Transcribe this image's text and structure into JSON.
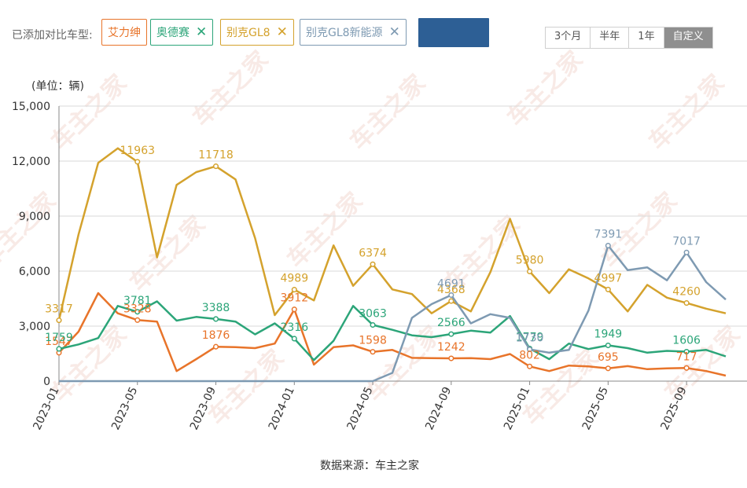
{
  "header": {
    "prefix": "已添加对比车型:",
    "chips": [
      {
        "label": "艾力绅",
        "color": "#e8742a",
        "removable": false
      },
      {
        "label": "奥德赛",
        "color": "#2ca579",
        "removable": true
      },
      {
        "label": "别克GL8",
        "color": "#d4a22d",
        "removable": true
      },
      {
        "label": "别克GL8新能源",
        "color": "#7e9ab2",
        "removable": true
      }
    ],
    "remove_glyph": "✕",
    "ranges": [
      {
        "label": "3个月",
        "active": false
      },
      {
        "label": "半年",
        "active": false
      },
      {
        "label": "1年",
        "active": false
      },
      {
        "label": "自定义",
        "active": true
      }
    ]
  },
  "source_note": "数据来源：车主之家",
  "watermark_text": "车主之家",
  "chart_data": {
    "type": "line",
    "unit_label": "(单位：辆)",
    "x": [
      "2023-01",
      "2023-02",
      "2023-03",
      "2023-04",
      "2023-05",
      "2023-06",
      "2023-07",
      "2023-08",
      "2023-09",
      "2023-10",
      "2023-11",
      "2023-12",
      "2024-01",
      "2024-02",
      "2024-03",
      "2024-04",
      "2024-05",
      "2024-06",
      "2024-07",
      "2024-08",
      "2024-09",
      "2024-10",
      "2024-11",
      "2024-12",
      "2025-01",
      "2025-02",
      "2025-03",
      "2025-04",
      "2025-05",
      "2025-06",
      "2025-07",
      "2025-08",
      "2025-09",
      "2025-10",
      "2025-11"
    ],
    "x_ticks": [
      "2023-01",
      "2023-05",
      "2023-09",
      "2024-01",
      "2024-05",
      "2024-09",
      "2025-01",
      "2025-05",
      "2025-09"
    ],
    "ylim": [
      0,
      15000
    ],
    "y_ticks": [
      0,
      3000,
      6000,
      9000,
      12000,
      15000
    ],
    "y_tick_labels": [
      "0",
      "3,000",
      "6,000",
      "9,000",
      "12,000",
      "15,000"
    ],
    "series": [
      {
        "name": "艾力绅",
        "color": "#e8742a",
        "values": [
          1547,
          2700,
          4800,
          3700,
          3328,
          3250,
          550,
          1200,
          1876,
          1850,
          1800,
          2050,
          3912,
          900,
          1850,
          1950,
          1598,
          1700,
          1270,
          1250,
          1242,
          1250,
          1200,
          1480,
          802,
          550,
          850,
          800,
          695,
          820,
          650,
          700,
          717,
          550,
          300
        ],
        "labeled": [
          {
            "index": 0,
            "text": "1547"
          },
          {
            "index": 4,
            "text": "3328"
          },
          {
            "index": 8,
            "text": "1876"
          },
          {
            "index": 12,
            "text": "3912"
          },
          {
            "index": 16,
            "text": "1598"
          },
          {
            "index": 20,
            "text": "1242"
          },
          {
            "index": 24,
            "text": "802"
          },
          {
            "index": 28,
            "text": "695"
          },
          {
            "index": 32,
            "text": "717"
          }
        ]
      },
      {
        "name": "奥德赛",
        "color": "#2ca579",
        "values": [
          1759,
          2000,
          2350,
          4100,
          3781,
          4350,
          3300,
          3500,
          3388,
          3250,
          2550,
          3150,
          2316,
          1150,
          2200,
          4100,
          3063,
          2800,
          2500,
          2400,
          2566,
          2750,
          2650,
          3550,
          1779,
          1200,
          2050,
          1750,
          1949,
          1800,
          1550,
          1650,
          1606,
          1700,
          1350
        ],
        "labeled": [
          {
            "index": 0,
            "text": "1759"
          },
          {
            "index": 4,
            "text": "3781"
          },
          {
            "index": 8,
            "text": "3388"
          },
          {
            "index": 12,
            "text": "2316"
          },
          {
            "index": 16,
            "text": "3063"
          },
          {
            "index": 20,
            "text": "2566"
          },
          {
            "index": 24,
            "text": "1779"
          },
          {
            "index": 28,
            "text": "1949"
          },
          {
            "index": 32,
            "text": "1606"
          }
        ]
      },
      {
        "name": "别克GL8",
        "color": "#d4a22d",
        "values": [
          3317,
          8000,
          11900,
          12700,
          11963,
          6750,
          10700,
          11400,
          11718,
          11000,
          7800,
          3600,
          4989,
          4400,
          7400,
          5200,
          6374,
          5000,
          4750,
          3700,
          4368,
          3800,
          5950,
          8850,
          5980,
          4800,
          6100,
          5600,
          4997,
          3800,
          5250,
          4550,
          4260,
          3950,
          3700
        ],
        "labeled": [
          {
            "index": 0,
            "text": "3317"
          },
          {
            "index": 4,
            "text": "11963"
          },
          {
            "index": 8,
            "text": "11718"
          },
          {
            "index": 12,
            "text": "4989"
          },
          {
            "index": 16,
            "text": "6374"
          },
          {
            "index": 20,
            "text": "4368"
          },
          {
            "index": 24,
            "text": "5980"
          },
          {
            "index": 28,
            "text": "4997"
          },
          {
            "index": 32,
            "text": "4260"
          }
        ]
      },
      {
        "name": "别克GL8新能源",
        "color": "#7e9ab2",
        "values": [
          0,
          0,
          0,
          0,
          0,
          0,
          0,
          0,
          0,
          0,
          0,
          0,
          0,
          0,
          0,
          0,
          0,
          450,
          3450,
          4200,
          4691,
          3150,
          3650,
          3450,
          1730,
          1550,
          1700,
          3850,
          7391,
          6050,
          6200,
          5500,
          7017,
          5400,
          4450
        ],
        "labeled": [
          {
            "index": 20,
            "text": "4691"
          },
          {
            "index": 24,
            "text": "1730"
          },
          {
            "index": 28,
            "text": "7391"
          },
          {
            "index": 32,
            "text": "7017"
          }
        ]
      }
    ]
  }
}
